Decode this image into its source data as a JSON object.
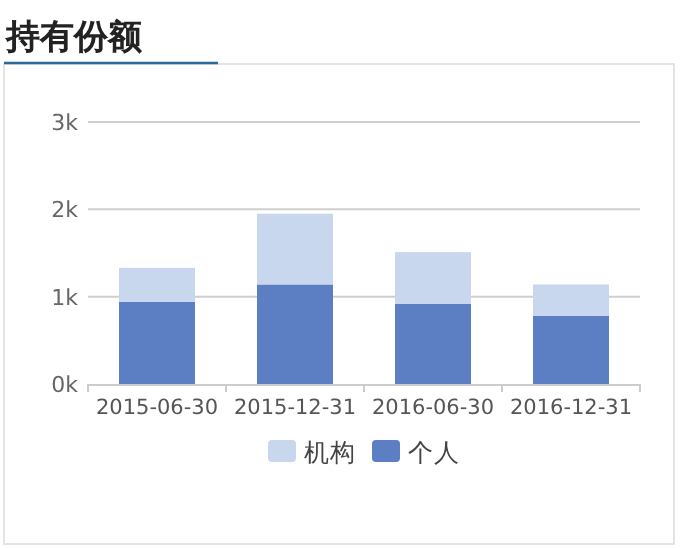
{
  "chart_data": {
    "type": "bar",
    "title": "持有份额",
    "stacked": true,
    "categories": [
      "2015-06-30",
      "2015-12-31",
      "2016-06-30",
      "2016-12-31"
    ],
    "series": [
      {
        "name": "个人",
        "color": "#5b7fc2",
        "values": [
          940,
          1140,
          920,
          780
        ]
      },
      {
        "name": "机构",
        "color": "#c8d6ee",
        "values": [
          390,
          810,
          590,
          360
        ]
      }
    ],
    "ylim": [
      0,
      3000
    ],
    "yticks": [
      {
        "value": 0,
        "label": "0k"
      },
      {
        "value": 1000,
        "label": "1k"
      },
      {
        "value": 2000,
        "label": "2k"
      },
      {
        "value": 3000,
        "label": "3k"
      }
    ],
    "grid": "y",
    "legend": "bottom"
  }
}
